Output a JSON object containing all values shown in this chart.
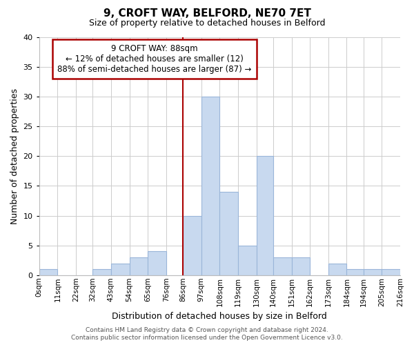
{
  "title": "9, CROFT WAY, BELFORD, NE70 7ET",
  "subtitle": "Size of property relative to detached houses in Belford",
  "xlabel": "Distribution of detached houses by size in Belford",
  "ylabel": "Number of detached properties",
  "bin_labels": [
    "0sqm",
    "11sqm",
    "22sqm",
    "32sqm",
    "43sqm",
    "54sqm",
    "65sqm",
    "76sqm",
    "86sqm",
    "97sqm",
    "108sqm",
    "119sqm",
    "130sqm",
    "140sqm",
    "151sqm",
    "162sqm",
    "173sqm",
    "184sqm",
    "194sqm",
    "205sqm",
    "216sqm"
  ],
  "bin_edges": [
    0,
    11,
    22,
    32,
    43,
    54,
    65,
    76,
    86,
    97,
    108,
    119,
    130,
    140,
    151,
    162,
    173,
    184,
    194,
    205,
    216
  ],
  "counts": [
    1,
    0,
    0,
    1,
    2,
    3,
    4,
    0,
    10,
    30,
    14,
    5,
    20,
    3,
    3,
    0,
    2,
    1,
    1,
    1
  ],
  "bar_color": "#c8d9ef",
  "bar_edge_color": "#9ab5d9",
  "vline_x": 86,
  "vline_color": "#aa0000",
  "ylim": [
    0,
    40
  ],
  "yticks": [
    0,
    5,
    10,
    15,
    20,
    25,
    30,
    35,
    40
  ],
  "annotation_title": "9 CROFT WAY: 88sqm",
  "annotation_line1": "← 12% of detached houses are smaller (12)",
  "annotation_line2": "88% of semi-detached houses are larger (87) →",
  "annotation_box_color": "#ffffff",
  "annotation_box_edge": "#aa0000",
  "footer_line1": "Contains HM Land Registry data © Crown copyright and database right 2024.",
  "footer_line2": "Contains public sector information licensed under the Open Government Licence v3.0.",
  "bg_color": "#ffffff",
  "grid_color": "#cccccc"
}
